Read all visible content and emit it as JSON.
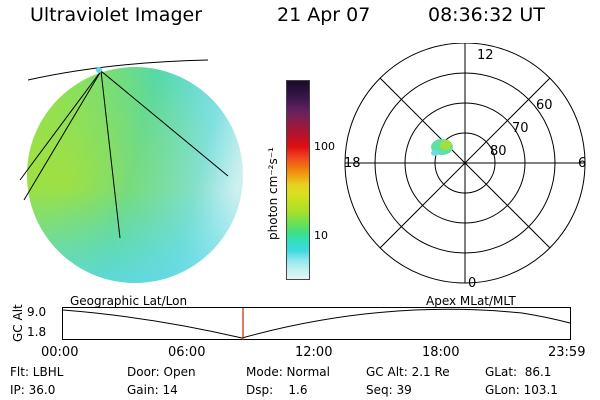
{
  "header": {
    "title": "Ultraviolet Imager",
    "date": "21 Apr 07",
    "time": "08:36:32 UT"
  },
  "colorbar": {
    "unit_label": "photon cm⁻²s⁻¹",
    "ticks": [
      "100",
      "10"
    ],
    "colors": [
      "#1a0a28",
      "#2a1040",
      "#401850",
      "#602060",
      "#802050",
      "#a01838",
      "#c01028",
      "#e01010",
      "#f04020",
      "#f07010",
      "#f0a010",
      "#e8d020",
      "#d8e020",
      "#c0e020",
      "#a0e030",
      "#70e050",
      "#40e080",
      "#30e0c0",
      "#40d8e0",
      "#90e8f0",
      "#c0f0f0",
      "#e8f4f4"
    ]
  },
  "polar": {
    "lat_labels": [
      "60",
      "70",
      "80"
    ],
    "hour_labels": {
      "top": "12",
      "left": "18",
      "right": "6",
      "bottom": "0"
    }
  },
  "timeline": {
    "ylabel": "GC Alt",
    "yticks": [
      "9.0",
      "1.8"
    ],
    "left_caption": "Geographic Lat/Lon",
    "right_caption": "Apex MLat/MLT",
    "xticks": [
      "00:00",
      "06:00",
      "12:00",
      "18:00",
      "23:59"
    ],
    "marker_color": "#cc2200"
  },
  "info": {
    "row1": [
      "Flt: LBHL",
      "Door: Open",
      "Mode: Normal",
      "GC Alt: 2.1 Re",
      "GLat:  86.1"
    ],
    "row2": [
      "IP: 36.0",
      "Gain: 14",
      "Dsp:    1.6",
      "Seq: 39",
      "GLon: 103.1"
    ]
  }
}
